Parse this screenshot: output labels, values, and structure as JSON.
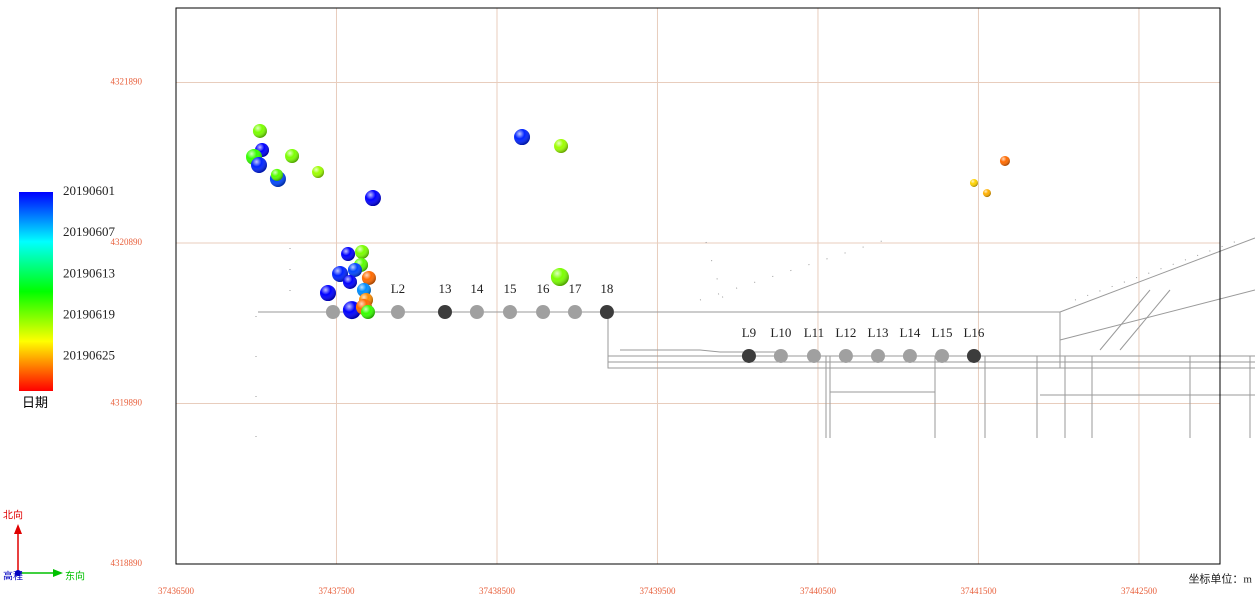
{
  "chart_data": {
    "type": "scatter",
    "xlim": [
      37436500,
      37443005
    ],
    "ylim": [
      4318890,
      4322354
    ],
    "xticks": [
      37436500,
      37437500,
      37438500,
      37439500,
      37440500,
      37441500,
      37442500
    ],
    "yticks": [
      4318890,
      4319890,
      4320890,
      4321890
    ],
    "grid": true,
    "events": {
      "x": [
        37437023,
        37437036,
        37436986,
        37437017,
        37437135,
        37437129,
        37437223,
        37437385,
        37437727,
        37438656,
        37438899,
        37438892,
        37441665,
        37441472,
        37441553,
        37437572,
        37437659,
        37437653,
        37437522,
        37437615,
        37437702,
        37437584,
        37437671,
        37437447,
        37437684,
        37437596,
        37437671,
        37437696
      ],
      "values": [
        4321588,
        4321469,
        4321426,
        4321376,
        4321289,
        4321314,
        4321432,
        4321332,
        4321170,
        4321550,
        4321494,
        4320678,
        4321401,
        4321264,
        4321201,
        4320821,
        4320834,
        4320753,
        4320697,
        4320722,
        4320672,
        4320647,
        4320597,
        4320578,
        4320535,
        4320472,
        4320491,
        4320460
      ],
      "dates": [
        20190619,
        20190601,
        20190617,
        20190602,
        20190603,
        20190618,
        20190619,
        20190620,
        20190601,
        20190602,
        20190620,
        20190619,
        20190627,
        20190624,
        20190625,
        20190601,
        20190619,
        20190618,
        20190602,
        20190603,
        20190627,
        20190601,
        20190605,
        20190601,
        20190626,
        20190601,
        20190627,
        20190617
      ],
      "magnitudes": [
        3.5,
        3.5,
        4,
        4,
        4,
        3,
        3.5,
        3,
        4,
        4,
        3.5,
        4.5,
        2.5,
        2,
        2,
        3.5,
        3.5,
        3.5,
        4,
        3.5,
        3.5,
        3.5,
        3.5,
        4,
        3.5,
        4.5,
        4,
        3.5
      ]
    },
    "stations": {
      "labels": [
        null,
        "L2",
        "13",
        "14",
        "15",
        "16",
        "17",
        "18",
        "L9",
        "L10",
        "L11",
        "L12",
        "L13",
        "L14",
        "L15",
        "L16"
      ],
      "x": [
        37437478,
        37437883,
        37438176,
        37438375,
        37438581,
        37438787,
        37438986,
        37439185,
        37440070,
        37440269,
        37440475,
        37440674,
        37440874,
        37441073,
        37441273,
        37441472
      ],
      "values": [
        4320460,
        4320460,
        4320460,
        4320460,
        4320460,
        4320460,
        4320460,
        4320460,
        4320186,
        4320186,
        4320186,
        4320186,
        4320186,
        4320186,
        4320186,
        4320186
      ],
      "colors": [
        "#a0a0a0",
        "#a0a0a0",
        "#3c3c3c",
        "#a0a0a0",
        "#a0a0a0",
        "#a0a0a0",
        "#a0a0a0",
        "#3c3c3c",
        "#3c3c3c",
        "#a0a0a0",
        "#a0a0a0",
        "#a0a0a0",
        "#a0a0a0",
        "#a0a0a0",
        "#a0a0a0",
        "#3c3c3c"
      ]
    },
    "colorbar": {
      "label": "日期",
      "clim": [
        20190601,
        20190630
      ],
      "ticks": [
        20190601,
        20190607,
        20190613,
        20190619,
        20190625
      ],
      "colormap": [
        "#0000ff",
        "#00ffff",
        "#00ff00",
        "#ffff00",
        "#ff0000"
      ]
    },
    "compass": {
      "north": "北向",
      "east": "东向",
      "up": "高程"
    },
    "unit_note": "坐标单位：m"
  }
}
